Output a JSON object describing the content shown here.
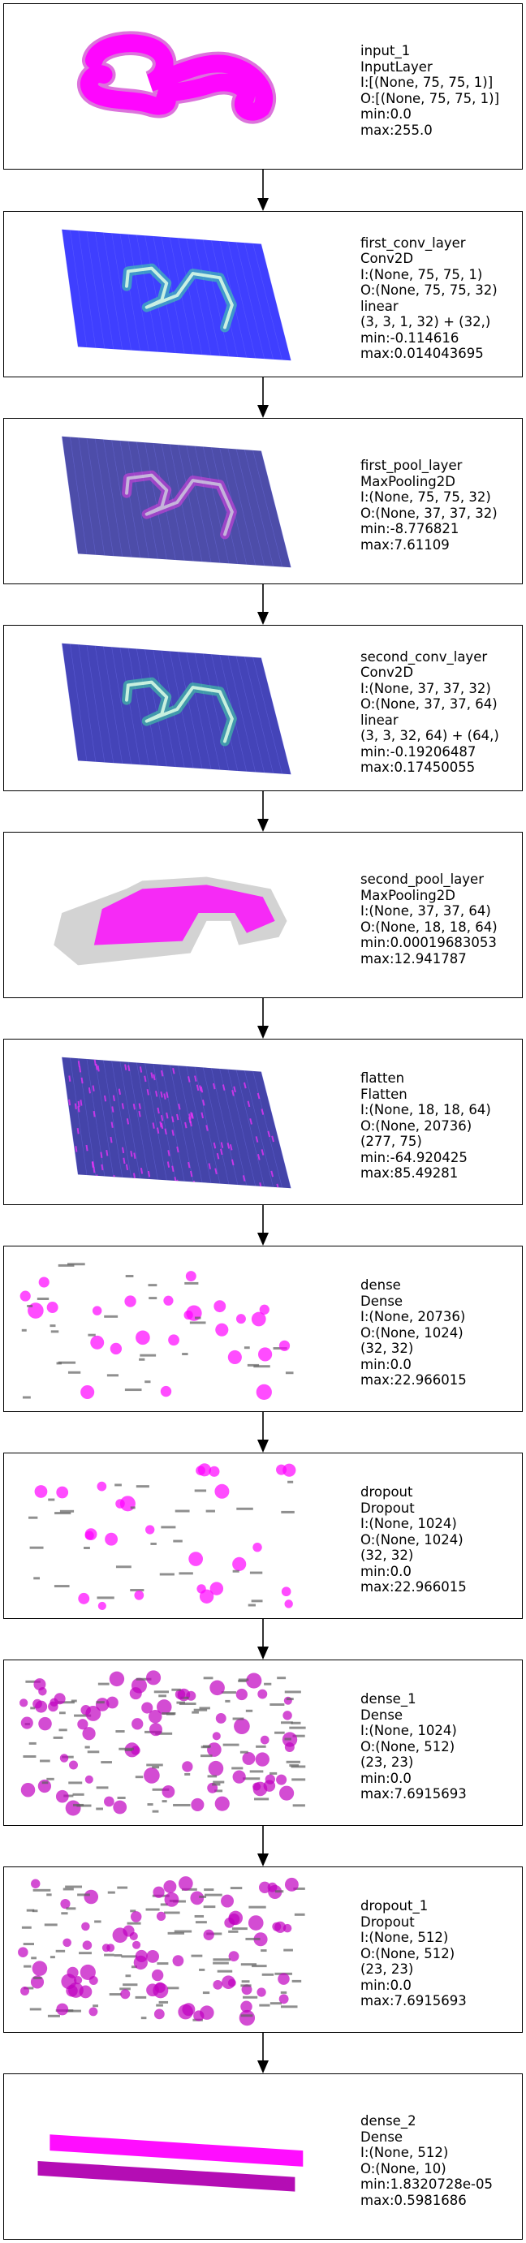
{
  "layers": [
    {
      "viz": "image",
      "colors": [
        "#ff00ff",
        "#c000c0"
      ],
      "lines": [
        "input_1",
        "InputLayer",
        "I:[(None, 75, 75, 1)]",
        "O:[(None, 75, 75, 1)]",
        "min:0.0",
        "max:255.0"
      ]
    },
    {
      "viz": "tensor-plane",
      "colors": [
        "#2a2aff",
        "#40e0a0"
      ],
      "lines": [
        "first_conv_layer",
        "Conv2D",
        "I:(None, 75, 75, 1)",
        "O:(None, 75, 75, 32)",
        "linear",
        "(3, 3, 1, 32) + (32,)",
        "min:-0.114616",
        "max:0.014043695"
      ]
    },
    {
      "viz": "tensor-plane",
      "colors": [
        "#3a3aa0",
        "#e040e0"
      ],
      "lines": [
        "first_pool_layer",
        "MaxPooling2D",
        "I:(None, 75, 75, 32)",
        "O:(None, 37, 37, 32)",
        "min:-8.776821",
        "max:7.61109"
      ]
    },
    {
      "viz": "tensor-plane",
      "colors": [
        "#3030b0",
        "#40e0a0"
      ],
      "lines": [
        "second_conv_layer",
        "Conv2D",
        "I:(None, 37, 37, 32)",
        "O:(None, 37, 37, 64)",
        "linear",
        "(3, 3, 32, 64) + (64,)",
        "min:-0.19206487",
        "max:0.17450055"
      ]
    },
    {
      "viz": "blob",
      "colors": [
        "#808080",
        "#ff00ff"
      ],
      "lines": [
        "second_pool_layer",
        "MaxPooling2D",
        "I:(None, 37, 37, 64)",
        "O:(None, 18, 18, 64)",
        "min:0.00019683053",
        "max:12.941787"
      ]
    },
    {
      "viz": "tensor-plane",
      "colors": [
        "#3030a0",
        "#ff30ff"
      ],
      "lines": [
        "flatten",
        "Flatten",
        "I:(None, 18, 18, 64)",
        "O:(None, 20736)",
        "(277, 75)",
        "min:-64.920425",
        "max:85.49281"
      ]
    },
    {
      "viz": "sparse",
      "colors": [
        "#606060",
        "#ff00ff"
      ],
      "lines": [
        "dense",
        "Dense",
        "I:(None, 20736)",
        "O:(None, 1024)",
        "(32, 32)",
        "min:0.0",
        "max:22.966015"
      ]
    },
    {
      "viz": "sparse",
      "colors": [
        "#606060",
        "#ff00ff"
      ],
      "lines": [
        "dropout",
        "Dropout",
        "I:(None, 1024)",
        "O:(None, 1024)",
        "(32, 32)",
        "min:0.0",
        "max:22.966015"
      ]
    },
    {
      "viz": "dense-sparse",
      "colors": [
        "#606060",
        "#c000c0"
      ],
      "lines": [
        "dense_1",
        "Dense",
        "I:(None, 1024)",
        "O:(None, 512)",
        "(23, 23)",
        "min:0.0",
        "max:7.6915693"
      ]
    },
    {
      "viz": "dense-sparse",
      "colors": [
        "#606060",
        "#c000c0"
      ],
      "lines": [
        "dropout_1",
        "Dropout",
        "I:(None, 512)",
        "O:(None, 512)",
        "(23, 23)",
        "min:0.0",
        "max:7.6915693"
      ]
    },
    {
      "viz": "bars",
      "colors": [
        "#ff00ff",
        "#b000b0"
      ],
      "lines": [
        "dense_2",
        "Dense",
        "I:(None, 512)",
        "O:(None, 10)",
        "min:1.8320728e-05",
        "max:0.5981686"
      ]
    }
  ]
}
